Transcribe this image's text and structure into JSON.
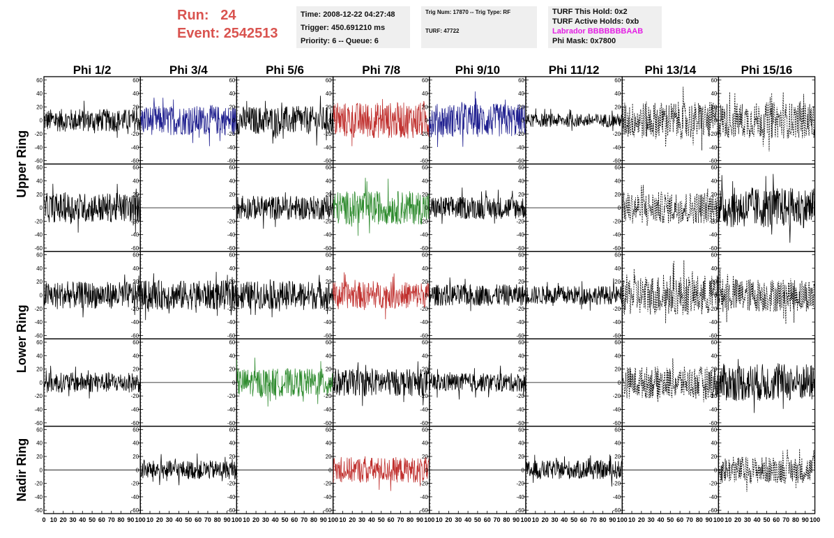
{
  "header": {
    "run_label": "Run:",
    "run_value": "24",
    "event_label": "Event:",
    "event_value": "2542513",
    "time": "Time: 2008-12-22 04:27:48",
    "trigger": "Trigger: 450.691210 ms",
    "priority": "Priority: 6 -- Queue: 6",
    "trig_num": "Trig Num: 17870 -- Trig Type: RF",
    "turf": "TURF: 47722",
    "turf_hold": "TURF This Hold: 0x2",
    "turf_active": "TURF Active Holds: 0xb",
    "labrador": "Labrador BBBBBBBAAB",
    "phi_mask": "Phi Mask: 0x7800"
  },
  "colors": {
    "run_text": "#d9534f",
    "labrador_text": "#e31ee3",
    "black": "#000000",
    "blue": "#1f1f8f",
    "red": "#c0302e",
    "green": "#2e8b2e"
  },
  "chart_data": {
    "type": "line",
    "columns": [
      "Phi 1/2",
      "Phi 3/4",
      "Phi 5/6",
      "Phi 7/8",
      "Phi 9/10",
      "Phi 11/12",
      "Phi 13/14",
      "Phi 15/16"
    ],
    "rows": [
      "Upper Ring",
      "Upper Ring",
      "Lower Ring",
      "Lower Ring",
      "Nadir Ring"
    ],
    "row_labels": [
      "Upper Ring",
      "Lower Ring",
      "Nadir Ring"
    ],
    "ylim": [
      -65,
      65
    ],
    "yticks": [
      -60,
      -40,
      -20,
      0,
      20,
      40,
      60
    ],
    "xlim": [
      0,
      100
    ],
    "xticks": [
      0,
      10,
      20,
      30,
      40,
      50,
      60,
      70,
      80,
      90,
      100
    ],
    "n_samples": 260,
    "grid": [
      [
        {
          "c": "black",
          "a": 17
        },
        {
          "c": "blue",
          "a": 22
        },
        {
          "c": "black",
          "a": 21
        },
        {
          "c": "red",
          "a": 27
        },
        {
          "c": "blue",
          "a": 25
        },
        {
          "c": "black",
          "a": 10
        },
        {
          "c": "black",
          "a": 28,
          "dash": true
        },
        {
          "c": "black",
          "a": 27,
          "dash": true
        }
      ],
      [
        {
          "c": "black",
          "a": 22
        },
        {
          "c": "flat",
          "a": 0
        },
        {
          "c": "black",
          "a": 18
        },
        {
          "c": "green",
          "a": 25
        },
        {
          "c": "black",
          "a": 17
        },
        {
          "c": "flat",
          "a": 0
        },
        {
          "c": "black",
          "a": 24,
          "dash": true
        },
        {
          "c": "black",
          "a": 30
        }
      ],
      [
        {
          "c": "black",
          "a": 20
        },
        {
          "c": "black",
          "a": 22
        },
        {
          "c": "black",
          "a": 21
        },
        {
          "c": "red",
          "a": 20
        },
        {
          "c": "black",
          "a": 16
        },
        {
          "c": "black",
          "a": 14
        },
        {
          "c": "black",
          "a": 30,
          "dash": true
        },
        {
          "c": "black",
          "a": 25,
          "dash": true
        }
      ],
      [
        {
          "c": "black",
          "a": 15
        },
        {
          "c": "flat",
          "a": 0
        },
        {
          "c": "green",
          "a": 21
        },
        {
          "c": "black",
          "a": 20
        },
        {
          "c": "black",
          "a": 14
        },
        {
          "c": "flat",
          "a": 0
        },
        {
          "c": "black",
          "a": 24,
          "dash": true
        },
        {
          "c": "black",
          "a": 28
        }
      ],
      [
        {
          "c": "flat",
          "a": 0
        },
        {
          "c": "black",
          "a": 14
        },
        {
          "c": "flat",
          "a": 0
        },
        {
          "c": "red",
          "a": 19
        },
        {
          "c": "flat",
          "a": 0
        },
        {
          "c": "black",
          "a": 14
        },
        {
          "c": "flat",
          "a": 0
        },
        {
          "c": "black",
          "a": 20,
          "dash": true
        }
      ]
    ]
  }
}
